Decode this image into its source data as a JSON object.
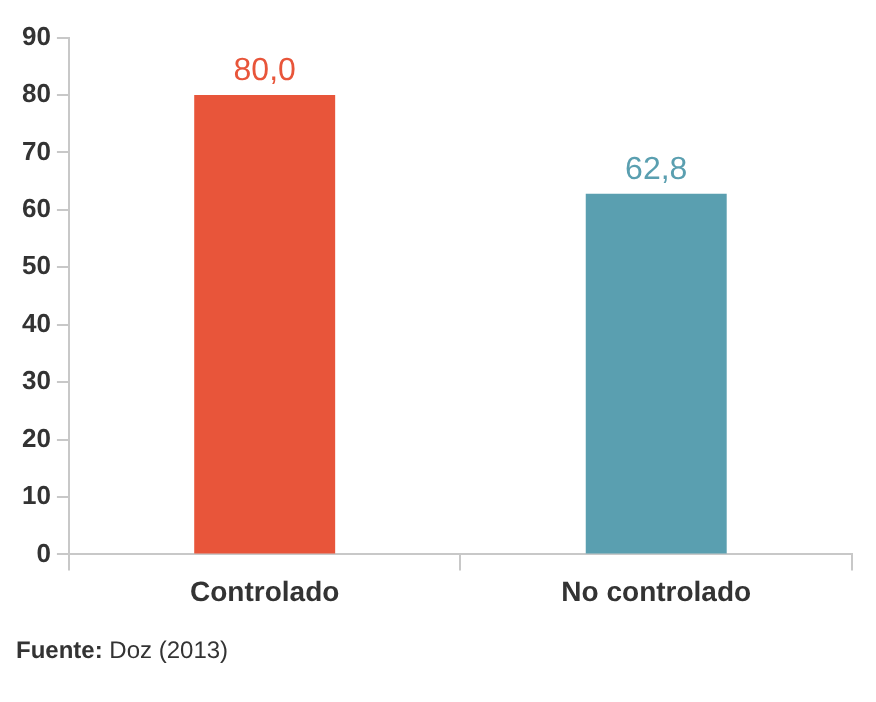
{
  "chart_data": {
    "type": "bar",
    "categories": [
      "Controlado",
      "No controlado"
    ],
    "values": [
      80.0,
      62.8
    ],
    "colors": [
      "#e8553a",
      "#5a9fb0"
    ],
    "value_labels": [
      "80,0",
      "62,8"
    ],
    "ylim": [
      0,
      90
    ],
    "yticks": [
      0,
      10,
      20,
      30,
      40,
      50,
      60,
      70,
      80,
      90
    ],
    "grid": false,
    "legend": false,
    "annotations": [
      "Fuente: Doz (2013)"
    ]
  }
}
